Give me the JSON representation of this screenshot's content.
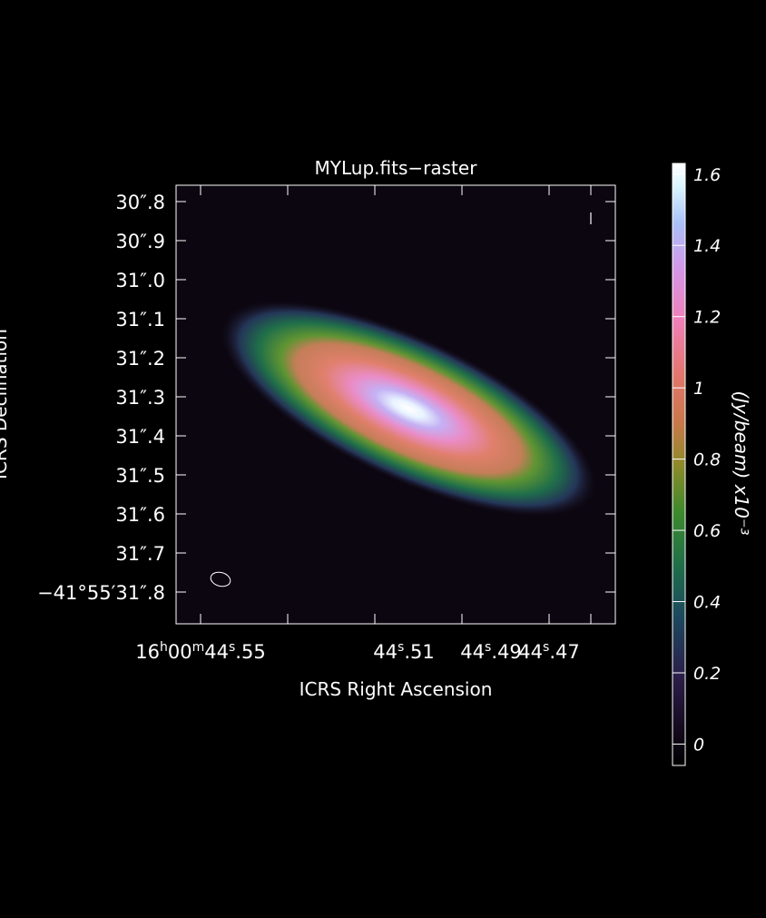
{
  "title": "MYLup.fits−raster",
  "x_axis": {
    "label": "ICRS Right Ascension",
    "ticks": [
      {
        "h": "16",
        "hs": "h",
        "m": "00",
        "ms": "m",
        "s": "44",
        "ss": "s",
        "frac": ".55"
      },
      {
        "h": "",
        "hs": "",
        "m": "",
        "ms": "",
        "s": "44",
        "ss": "s",
        "frac": ".51"
      },
      {
        "h": "",
        "hs": "",
        "m": "",
        "ms": "",
        "s": "44",
        "ss": "s",
        "frac": ".49"
      },
      {
        "h": "",
        "hs": "",
        "m": "",
        "ms": "",
        "s": "44",
        "ss": "s",
        "frac": ".47"
      }
    ]
  },
  "y_axis": {
    "label": "ICRS Declination",
    "ticks": [
      "30″.8",
      "30″.9",
      "31″.0",
      "31″.1",
      "31″.2",
      "31″.3",
      "31″.4",
      "31″.5",
      "31″.6",
      "31″.7",
      "−41°55′31″.8"
    ]
  },
  "colorbar": {
    "label": "(Jy/beam)  x10⁻³",
    "ticks": [
      "1.6",
      "1.4",
      "1.2",
      "1",
      "0.8",
      "0.6",
      "0.4",
      "0.2",
      "0"
    ],
    "tick_values": [
      1.6,
      1.4,
      1.2,
      1.0,
      0.8,
      0.6,
      0.4,
      0.2,
      0.0
    ],
    "range": [
      -0.06,
      1.63
    ]
  },
  "image": {
    "peak": 1.62,
    "colors": {
      "background": "#000000",
      "low": "#201028",
      "green": "#2e8b45",
      "orange": "#d47a62",
      "pink": "#e98ac8",
      "lavender": "#c4a8f0",
      "white": "#ffffff"
    }
  }
}
